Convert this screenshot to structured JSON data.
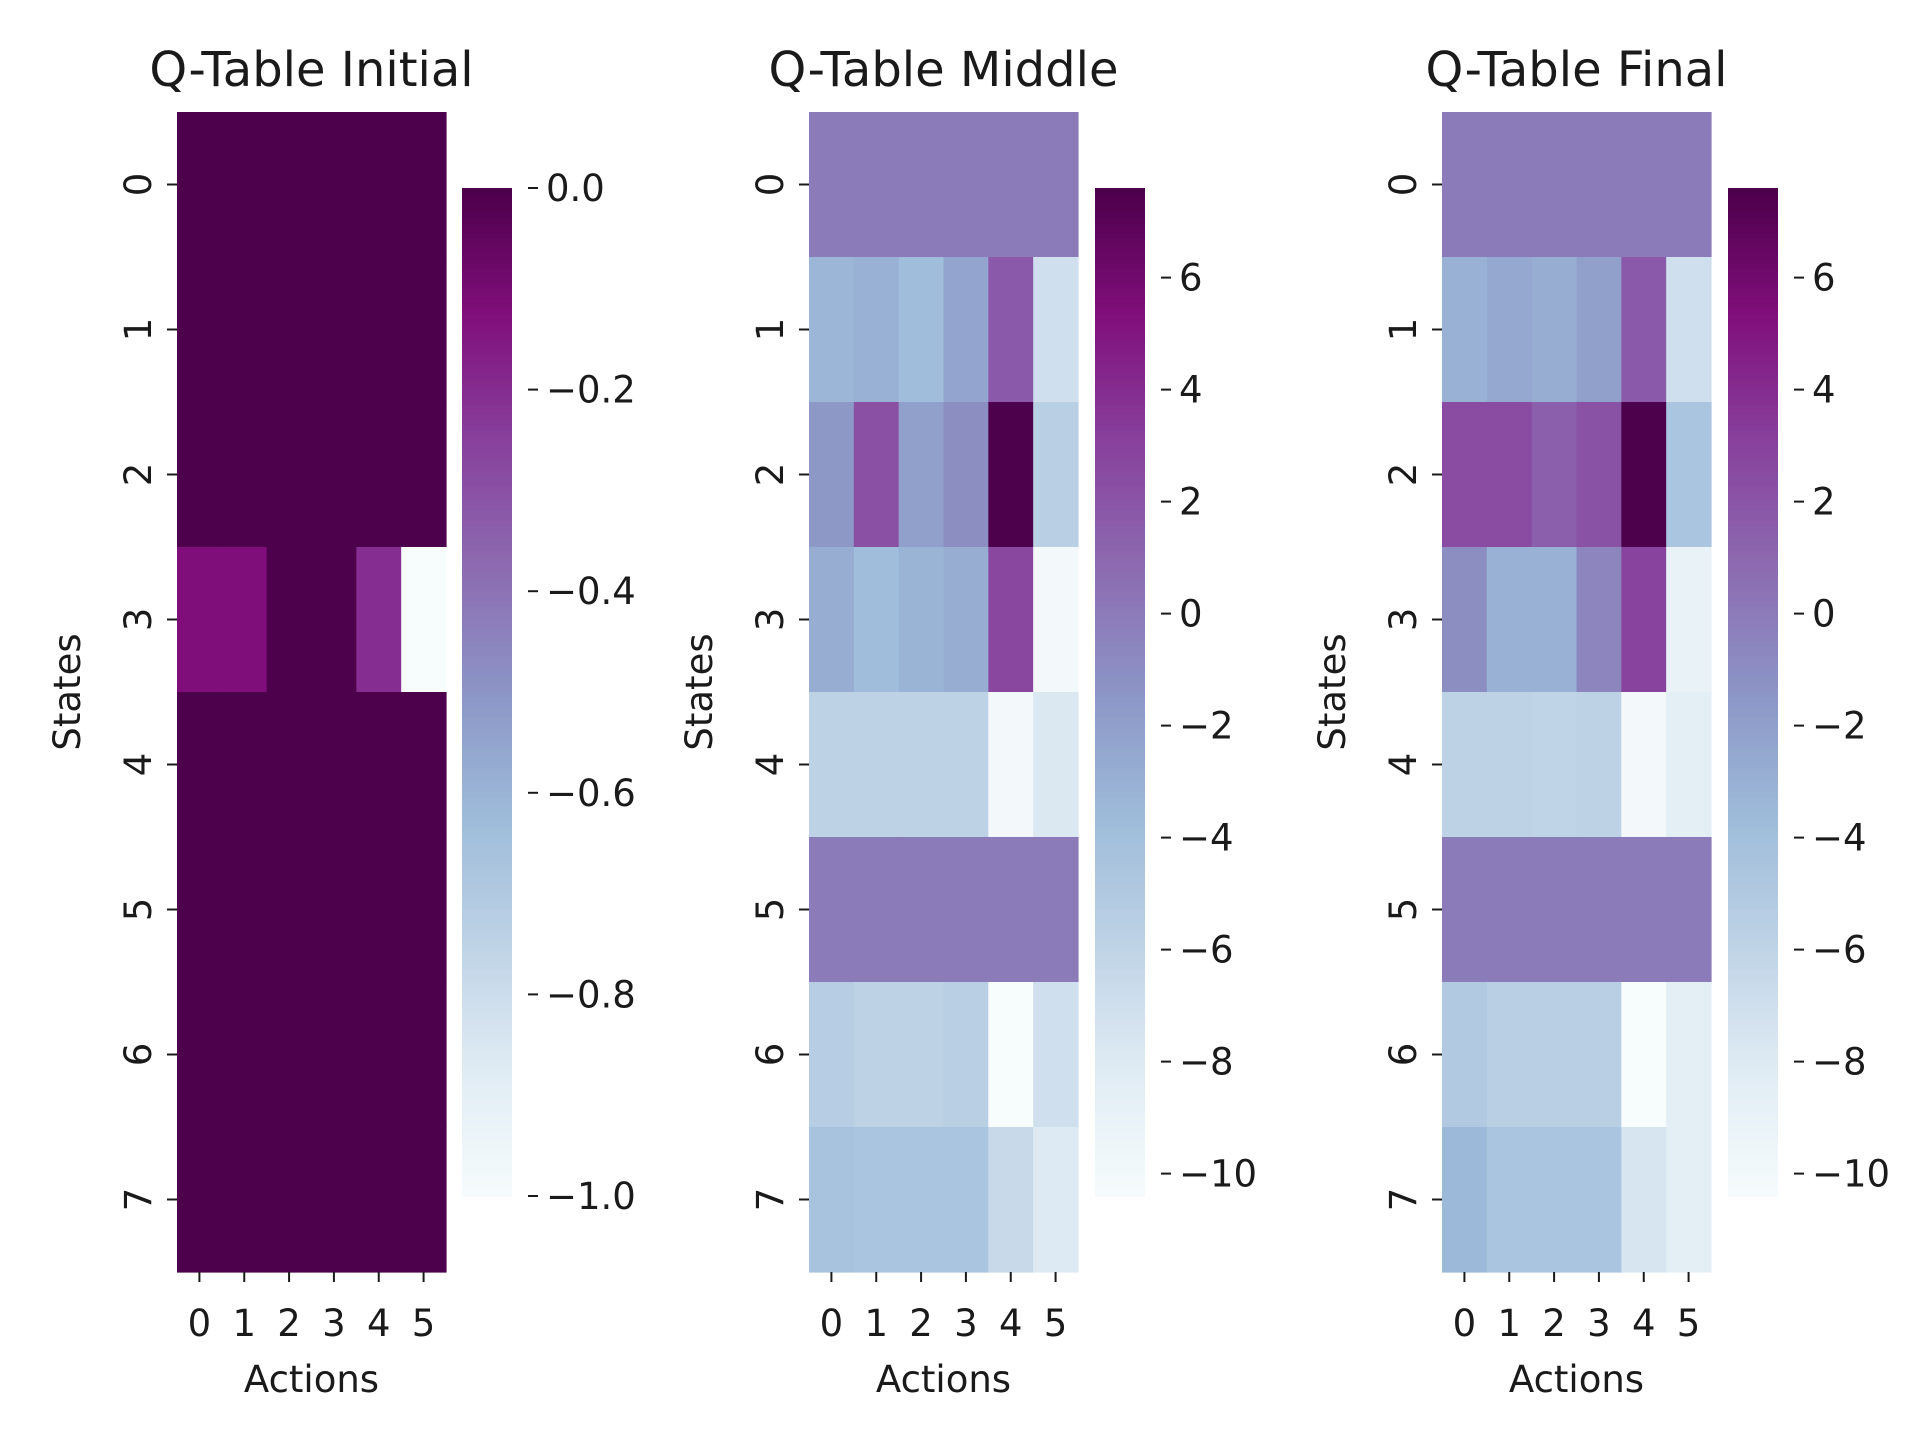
{
  "chart_data": [
    {
      "type": "heatmap",
      "title": "Q-Table Initial",
      "xlabel": "Actions",
      "ylabel": "States",
      "x_categories": [
        "0",
        "1",
        "2",
        "3",
        "4",
        "5"
      ],
      "y_categories": [
        "0",
        "1",
        "2",
        "3",
        "4",
        "5",
        "6",
        "7"
      ],
      "colormap": "BuPu",
      "vmin": -1.0,
      "vmax": 0.0,
      "colorbar_ticks": [
        0.0,
        -0.2,
        -0.4,
        -0.6,
        -0.8,
        -1.0
      ],
      "colorbar_tick_labels": [
        "0.0",
        "−0.2",
        "−0.4",
        "−0.6",
        "−0.8",
        "−1.0"
      ],
      "values": [
        [
          0,
          0,
          0,
          0,
          0,
          0
        ],
        [
          0,
          0,
          0,
          0,
          0,
          0
        ],
        [
          0,
          0,
          0,
          0,
          0,
          0
        ],
        [
          -0.12,
          -0.12,
          0,
          0,
          -0.2,
          -1.0
        ],
        [
          0,
          0,
          0,
          0,
          0,
          0
        ],
        [
          0,
          0,
          0,
          0,
          0,
          0
        ],
        [
          0,
          0,
          0,
          0,
          0,
          0
        ],
        [
          0,
          0,
          0,
          0,
          0,
          0
        ]
      ]
    },
    {
      "type": "heatmap",
      "title": "Q-Table Middle",
      "xlabel": "Actions",
      "ylabel": "States",
      "x_categories": [
        "0",
        "1",
        "2",
        "3",
        "4",
        "5"
      ],
      "y_categories": [
        "0",
        "1",
        "2",
        "3",
        "4",
        "5",
        "6",
        "7"
      ],
      "colormap": "BuPu",
      "vmin": -10.4,
      "vmax": 7.6,
      "colorbar_ticks": [
        6,
        4,
        2,
        0,
        -2,
        -4,
        -6,
        -8,
        -10
      ],
      "colorbar_tick_labels": [
        "6",
        "4",
        "2",
        "0",
        "−2",
        "−4",
        "−6",
        "−8",
        "−10"
      ],
      "values": [
        [
          0,
          0,
          0,
          0,
          0,
          0
        ],
        [
          -3.3,
          -3.0,
          -3.8,
          -2.3,
          1.8,
          -7.0
        ],
        [
          -1.5,
          2.3,
          -2.0,
          -1.0,
          7.6,
          -5.5
        ],
        [
          -2.8,
          -3.8,
          -3.2,
          -2.8,
          2.8,
          -10.0
        ],
        [
          -5.8,
          -5.8,
          -5.8,
          -5.8,
          -10.0,
          -7.8
        ],
        [
          0,
          0,
          0,
          0,
          0,
          0
        ],
        [
          -5.3,
          -5.8,
          -5.8,
          -5.5,
          -10.4,
          -7.0
        ],
        [
          -4.3,
          -4.5,
          -4.5,
          -4.5,
          -6.5,
          -8.0
        ]
      ]
    },
    {
      "type": "heatmap",
      "title": "Q-Table Final",
      "xlabel": "Actions",
      "ylabel": "States",
      "x_categories": [
        "0",
        "1",
        "2",
        "3",
        "4",
        "5"
      ],
      "y_categories": [
        "0",
        "1",
        "2",
        "3",
        "4",
        "5",
        "6",
        "7"
      ],
      "colormap": "BuPu",
      "vmin": -10.4,
      "vmax": 7.6,
      "colorbar_ticks": [
        6,
        4,
        2,
        0,
        -2,
        -4,
        -6,
        -8,
        -10
      ],
      "colorbar_tick_labels": [
        "6",
        "4",
        "2",
        "0",
        "−2",
        "−4",
        "−6",
        "−8",
        "−10"
      ],
      "values": [
        [
          0,
          0,
          0,
          0,
          0,
          0
        ],
        [
          -3.0,
          -2.5,
          -2.8,
          -2.0,
          1.8,
          -7.0
        ],
        [
          2.5,
          2.5,
          1.5,
          2.2,
          7.6,
          -4.5
        ],
        [
          -1.0,
          -3.0,
          -3.0,
          -0.5,
          3.0,
          -9.0
        ],
        [
          -5.8,
          -5.8,
          -6.0,
          -5.8,
          -10.0,
          -8.5
        ],
        [
          0,
          0,
          0,
          0,
          0,
          0
        ],
        [
          -5.0,
          -5.5,
          -5.5,
          -5.5,
          -10.4,
          -8.5
        ],
        [
          -3.5,
          -4.5,
          -4.5,
          -4.5,
          -7.5,
          -8.5
        ]
      ]
    }
  ]
}
